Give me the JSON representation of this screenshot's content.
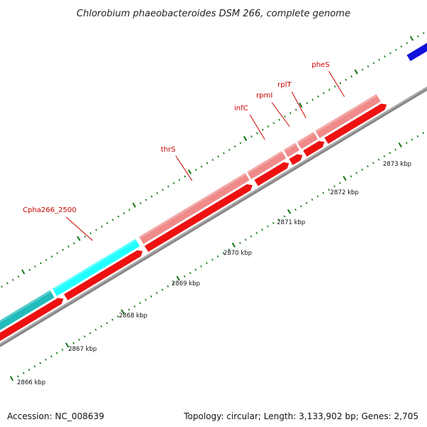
{
  "title": "Chlorobium phaeobacteroides DSM 266, complete genome",
  "footer": {
    "accession": "Accession: NC_008639",
    "summary": "Topology: circular; Length: 3,133,902 bp; Genes: 2,705"
  },
  "colors": {
    "forward_gene": "#f08a8a",
    "reverse_gene": "#ee1111",
    "forward_cyan": "#22ffff",
    "forward_teal": "#22bbbb",
    "other_strand": "#1111dd",
    "backbone": "#888888",
    "tick": "#117711",
    "label": "#cc0000"
  },
  "ticks": [
    "2866 kbp",
    "2867 kbp",
    "2868 kbp",
    "2869 kbp",
    "2870 kbp",
    "2871 kbp",
    "2872 kbp",
    "2873 kbp"
  ],
  "gene_labels": [
    "Cpha266_2500",
    "thrS",
    "infC",
    "rpmI",
    "rplT",
    "pheS"
  ]
}
